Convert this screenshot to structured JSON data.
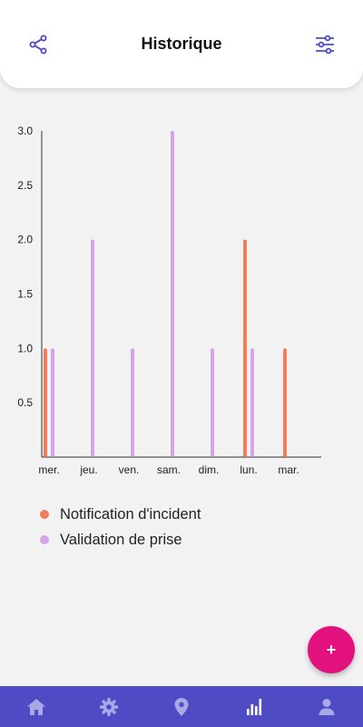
{
  "header": {
    "title": "Historique"
  },
  "colors": {
    "primary": "#4f4bc4",
    "nav_icon_inactive": "#a9a7e6",
    "nav_icon_active": "#ffffff",
    "fab": "#e3117e",
    "incident": "#f07e5a",
    "validation": "#d6a2e8"
  },
  "icons": {
    "share": "share-icon",
    "filter": "sliders-icon",
    "nav": [
      "home-icon",
      "gear-icon",
      "location-pin-icon",
      "bar-chart-icon",
      "user-icon"
    ]
  },
  "fab": {
    "label": "+"
  },
  "chart_data": {
    "type": "bar",
    "categories": [
      "mer.",
      "jeu.",
      "ven.",
      "sam.",
      "dim.",
      "lun.",
      "mar."
    ],
    "series": [
      {
        "name": "Notification d'incident",
        "values": [
          1,
          0,
          0,
          0,
          0,
          2,
          1
        ]
      },
      {
        "name": "Validation de prise",
        "values": [
          1,
          2,
          1,
          3,
          1,
          1,
          0
        ]
      }
    ],
    "yticks": [
      "0.5",
      "1.0",
      "1.5",
      "2.0",
      "2.5",
      "3.0"
    ],
    "ylim": [
      0,
      3
    ],
    "grid": false,
    "legend": "bottom-left"
  }
}
